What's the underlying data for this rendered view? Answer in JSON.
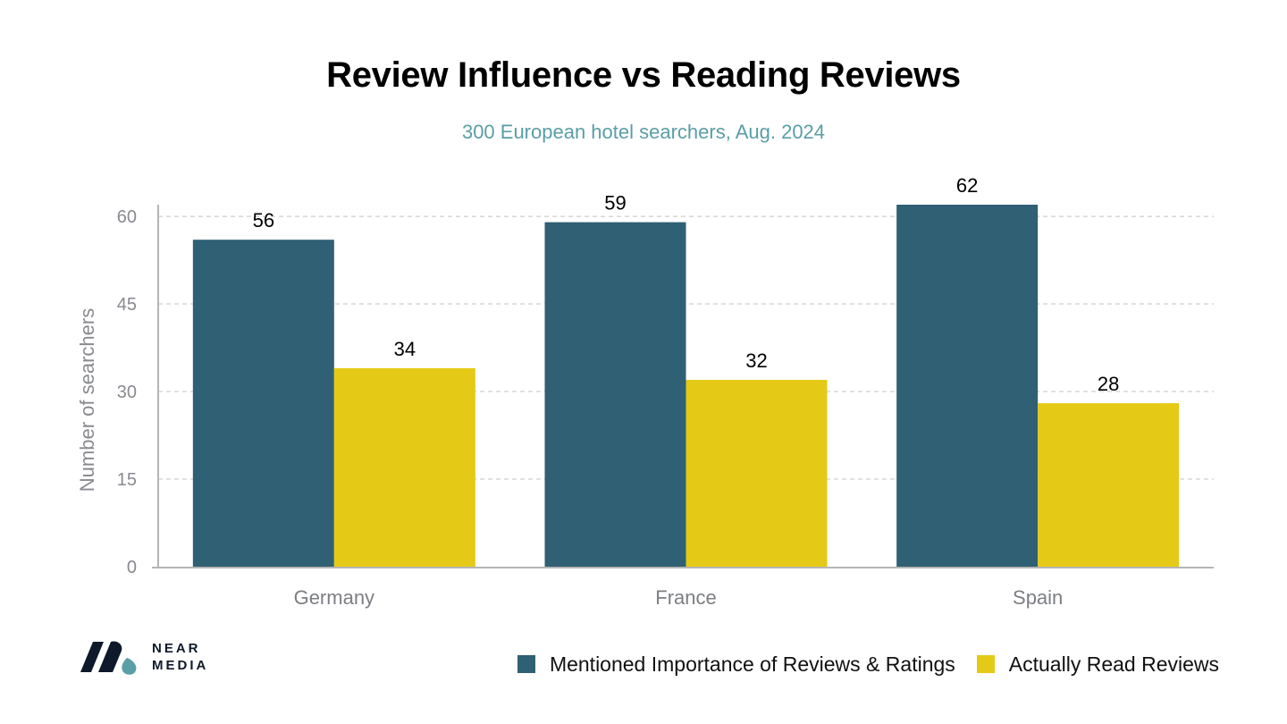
{
  "chart_data": {
    "type": "bar",
    "title": "Review Influence vs Reading Reviews",
    "subtitle": "300 European hotel searchers, Aug. 2024",
    "xlabel": "",
    "ylabel": "Number of searchers",
    "ylim": [
      0,
      62
    ],
    "yticks": [
      0,
      15,
      30,
      45,
      60
    ],
    "grid": true,
    "legend_position": "bottom-right",
    "categories": [
      "Germany",
      "France",
      "Spain"
    ],
    "series": [
      {
        "name": "Mentioned Importance of Reviews & Ratings",
        "values": [
          56,
          59,
          62
        ],
        "color": "#2f6074"
      },
      {
        "name": "Actually Read Reviews",
        "values": [
          34,
          32,
          28
        ],
        "color": "#e4ca17"
      }
    ]
  },
  "brand": {
    "line1": "NEAR",
    "line2": "MEDIA",
    "colors": {
      "dark": "#0e1a2b",
      "teal": "#5a9ea6"
    }
  }
}
